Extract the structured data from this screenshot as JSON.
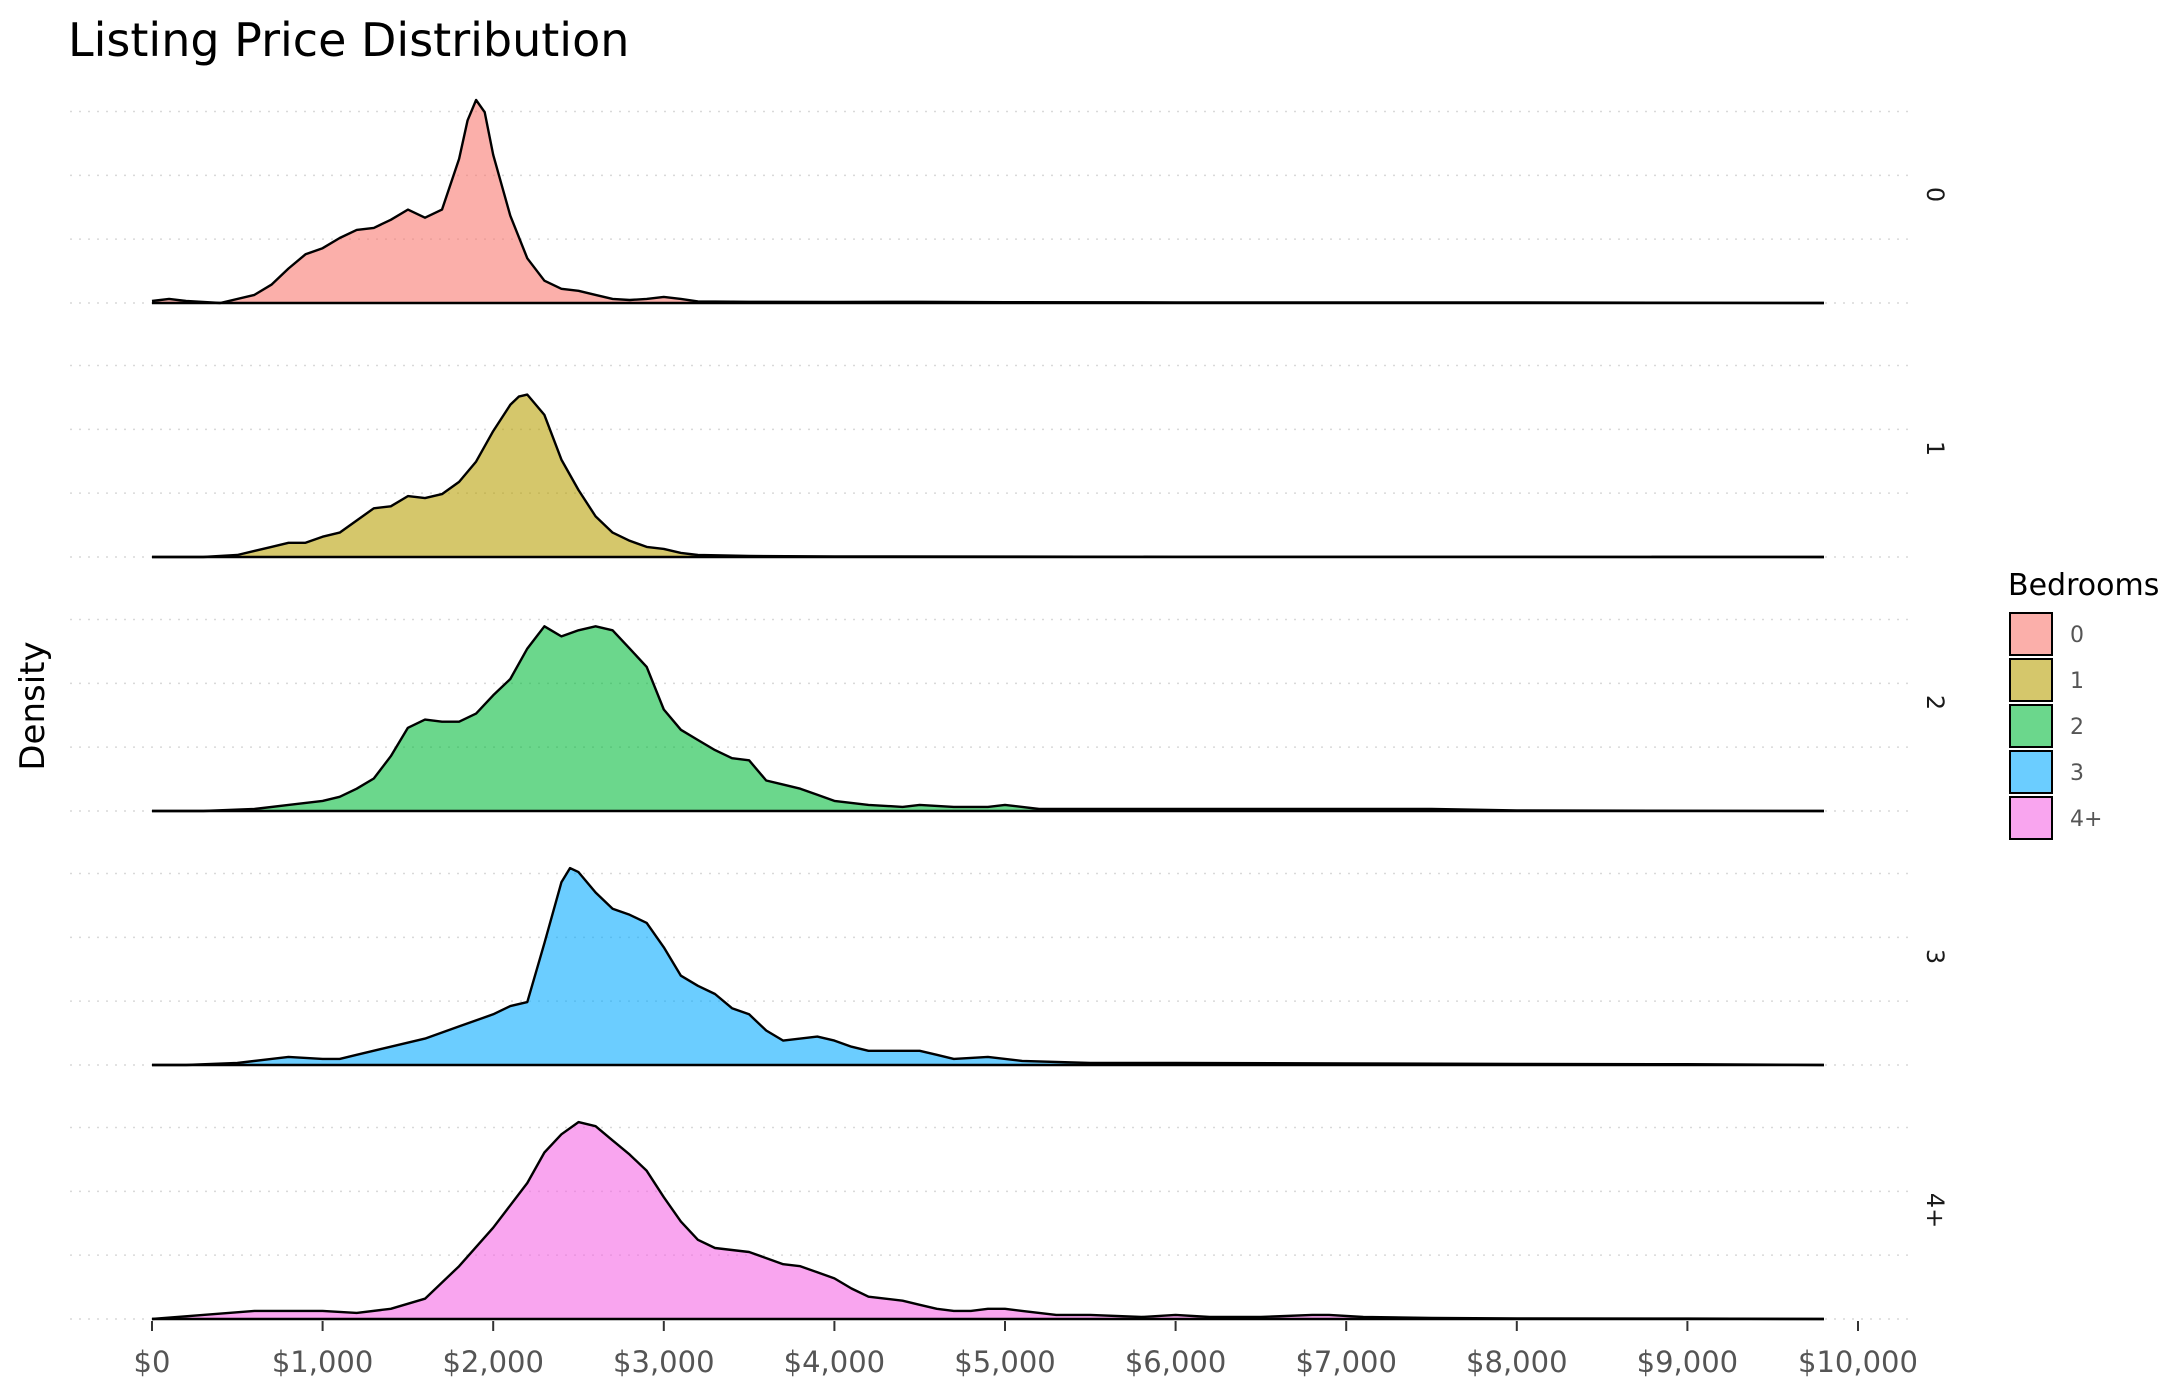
{
  "chart_data": {
    "type": "area",
    "title": "Listing Price Distribution",
    "xlabel": "",
    "ylabel": "Density",
    "xlim": [
      0,
      10000
    ],
    "x_ticks": [
      0,
      1000,
      2000,
      3000,
      4000,
      5000,
      6000,
      7000,
      8000,
      9000,
      10000
    ],
    "x_tick_labels": [
      "$0",
      "$1,000",
      "$2,000",
      "$3,000",
      "$4,000",
      "$5,000",
      "$6,000",
      "$7,000",
      "$8,000",
      "$9,000",
      "$10,000"
    ],
    "facet_by": "Bedrooms",
    "grid": true,
    "legend": {
      "title": "Bedrooms",
      "position": "right"
    },
    "series": [
      {
        "name": "0",
        "color": "#F8766D",
        "points": [
          [
            0,
            0.01
          ],
          [
            100,
            0.02
          ],
          [
            200,
            0.01
          ],
          [
            400,
            0.0
          ],
          [
            600,
            0.04
          ],
          [
            700,
            0.09
          ],
          [
            800,
            0.17
          ],
          [
            900,
            0.24
          ],
          [
            1000,
            0.27
          ],
          [
            1100,
            0.32
          ],
          [
            1200,
            0.36
          ],
          [
            1300,
            0.37
          ],
          [
            1400,
            0.41
          ],
          [
            1500,
            0.46
          ],
          [
            1600,
            0.42
          ],
          [
            1700,
            0.46
          ],
          [
            1800,
            0.71
          ],
          [
            1850,
            0.9
          ],
          [
            1900,
            1.0
          ],
          [
            1950,
            0.94
          ],
          [
            2000,
            0.73
          ],
          [
            2100,
            0.43
          ],
          [
            2200,
            0.22
          ],
          [
            2300,
            0.11
          ],
          [
            2400,
            0.07
          ],
          [
            2500,
            0.06
          ],
          [
            2600,
            0.04
          ],
          [
            2700,
            0.02
          ],
          [
            2800,
            0.015
          ],
          [
            2900,
            0.02
          ],
          [
            3000,
            0.03
          ],
          [
            3100,
            0.02
          ],
          [
            3200,
            0.008
          ],
          [
            3500,
            0.006
          ],
          [
            4000,
            0.005
          ],
          [
            4500,
            0.006
          ],
          [
            5000,
            0.004
          ],
          [
            6000,
            0.003
          ],
          [
            7000,
            0.003
          ],
          [
            8000,
            0.003
          ],
          [
            9800,
            0.0
          ]
        ]
      },
      {
        "name": "1",
        "color": "#B79F00",
        "points": [
          [
            0,
            0.0
          ],
          [
            300,
            0.0
          ],
          [
            500,
            0.01
          ],
          [
            600,
            0.03
          ],
          [
            700,
            0.05
          ],
          [
            800,
            0.07
          ],
          [
            900,
            0.07
          ],
          [
            1000,
            0.1
          ],
          [
            1100,
            0.12
          ],
          [
            1200,
            0.18
          ],
          [
            1300,
            0.24
          ],
          [
            1400,
            0.25
          ],
          [
            1500,
            0.3
          ],
          [
            1600,
            0.29
          ],
          [
            1700,
            0.31
          ],
          [
            1800,
            0.37
          ],
          [
            1900,
            0.47
          ],
          [
            2000,
            0.62
          ],
          [
            2100,
            0.75
          ],
          [
            2150,
            0.79
          ],
          [
            2200,
            0.8
          ],
          [
            2300,
            0.7
          ],
          [
            2400,
            0.48
          ],
          [
            2500,
            0.33
          ],
          [
            2600,
            0.2
          ],
          [
            2700,
            0.12
          ],
          [
            2800,
            0.08
          ],
          [
            2900,
            0.05
          ],
          [
            3000,
            0.04
          ],
          [
            3100,
            0.02
          ],
          [
            3200,
            0.01
          ],
          [
            3500,
            0.005
          ],
          [
            4000,
            0.003
          ],
          [
            5000,
            0.002
          ],
          [
            6000,
            0.001
          ],
          [
            7000,
            0.001
          ],
          [
            8000,
            0.001
          ],
          [
            9800,
            0.0
          ]
        ]
      },
      {
        "name": "2",
        "color": "#00BA38",
        "points": [
          [
            0,
            0.0
          ],
          [
            300,
            0.0
          ],
          [
            600,
            0.01
          ],
          [
            800,
            0.03
          ],
          [
            1000,
            0.05
          ],
          [
            1100,
            0.07
          ],
          [
            1200,
            0.11
          ],
          [
            1300,
            0.16
          ],
          [
            1400,
            0.27
          ],
          [
            1500,
            0.41
          ],
          [
            1600,
            0.45
          ],
          [
            1700,
            0.44
          ],
          [
            1800,
            0.44
          ],
          [
            1900,
            0.48
          ],
          [
            2000,
            0.57
          ],
          [
            2100,
            0.65
          ],
          [
            2200,
            0.8
          ],
          [
            2300,
            0.91
          ],
          [
            2400,
            0.86
          ],
          [
            2500,
            0.89
          ],
          [
            2600,
            0.91
          ],
          [
            2700,
            0.89
          ],
          [
            2800,
            0.8
          ],
          [
            2900,
            0.71
          ],
          [
            3000,
            0.5
          ],
          [
            3100,
            0.4
          ],
          [
            3200,
            0.35
          ],
          [
            3300,
            0.3
          ],
          [
            3400,
            0.26
          ],
          [
            3500,
            0.25
          ],
          [
            3600,
            0.15
          ],
          [
            3700,
            0.13
          ],
          [
            3800,
            0.11
          ],
          [
            3900,
            0.08
          ],
          [
            4000,
            0.05
          ],
          [
            4200,
            0.03
          ],
          [
            4400,
            0.02
          ],
          [
            4500,
            0.03
          ],
          [
            4700,
            0.02
          ],
          [
            4900,
            0.02
          ],
          [
            5000,
            0.03
          ],
          [
            5200,
            0.01
          ],
          [
            5500,
            0.01
          ],
          [
            6000,
            0.01
          ],
          [
            7000,
            0.01
          ],
          [
            7500,
            0.01
          ],
          [
            8000,
            0.003
          ],
          [
            9800,
            0.0
          ]
        ]
      },
      {
        "name": "3",
        "color": "#00A9FF",
        "points": [
          [
            0,
            0.0
          ],
          [
            200,
            0.0
          ],
          [
            500,
            0.01
          ],
          [
            700,
            0.03
          ],
          [
            800,
            0.04
          ],
          [
            1000,
            0.03
          ],
          [
            1100,
            0.03
          ],
          [
            1200,
            0.05
          ],
          [
            1400,
            0.09
          ],
          [
            1600,
            0.13
          ],
          [
            1800,
            0.19
          ],
          [
            2000,
            0.25
          ],
          [
            2100,
            0.29
          ],
          [
            2200,
            0.31
          ],
          [
            2300,
            0.6
          ],
          [
            2400,
            0.9
          ],
          [
            2450,
            0.97
          ],
          [
            2500,
            0.95
          ],
          [
            2600,
            0.85
          ],
          [
            2700,
            0.77
          ],
          [
            2800,
            0.74
          ],
          [
            2900,
            0.7
          ],
          [
            3000,
            0.58
          ],
          [
            3100,
            0.44
          ],
          [
            3200,
            0.39
          ],
          [
            3300,
            0.35
          ],
          [
            3400,
            0.28
          ],
          [
            3500,
            0.25
          ],
          [
            3600,
            0.17
          ],
          [
            3700,
            0.12
          ],
          [
            3800,
            0.13
          ],
          [
            3900,
            0.14
          ],
          [
            4000,
            0.12
          ],
          [
            4100,
            0.09
          ],
          [
            4200,
            0.07
          ],
          [
            4400,
            0.07
          ],
          [
            4500,
            0.07
          ],
          [
            4600,
            0.05
          ],
          [
            4700,
            0.03
          ],
          [
            4900,
            0.04
          ],
          [
            5100,
            0.02
          ],
          [
            5500,
            0.01
          ],
          [
            6000,
            0.01
          ],
          [
            7000,
            0.008
          ],
          [
            8000,
            0.005
          ],
          [
            9000,
            0.004
          ],
          [
            9800,
            0.0
          ]
        ]
      },
      {
        "name": "4+",
        "color": "#F564E3",
        "points": [
          [
            0,
            0.0
          ],
          [
            300,
            0.02
          ],
          [
            600,
            0.04
          ],
          [
            1000,
            0.04
          ],
          [
            1200,
            0.03
          ],
          [
            1400,
            0.05
          ],
          [
            1600,
            0.1
          ],
          [
            1800,
            0.26
          ],
          [
            2000,
            0.45
          ],
          [
            2200,
            0.67
          ],
          [
            2300,
            0.82
          ],
          [
            2400,
            0.91
          ],
          [
            2500,
            0.97
          ],
          [
            2600,
            0.95
          ],
          [
            2700,
            0.88
          ],
          [
            2800,
            0.81
          ],
          [
            2900,
            0.73
          ],
          [
            3000,
            0.6
          ],
          [
            3100,
            0.48
          ],
          [
            3200,
            0.39
          ],
          [
            3300,
            0.35
          ],
          [
            3400,
            0.34
          ],
          [
            3500,
            0.33
          ],
          [
            3600,
            0.3
          ],
          [
            3700,
            0.27
          ],
          [
            3800,
            0.26
          ],
          [
            3900,
            0.23
          ],
          [
            4000,
            0.2
          ],
          [
            4100,
            0.15
          ],
          [
            4200,
            0.11
          ],
          [
            4300,
            0.1
          ],
          [
            4400,
            0.09
          ],
          [
            4500,
            0.07
          ],
          [
            4600,
            0.05
          ],
          [
            4700,
            0.04
          ],
          [
            4800,
            0.04
          ],
          [
            4900,
            0.05
          ],
          [
            5000,
            0.05
          ],
          [
            5100,
            0.04
          ],
          [
            5300,
            0.02
          ],
          [
            5500,
            0.02
          ],
          [
            5800,
            0.01
          ],
          [
            6000,
            0.02
          ],
          [
            6200,
            0.01
          ],
          [
            6500,
            0.01
          ],
          [
            6800,
            0.02
          ],
          [
            6900,
            0.02
          ],
          [
            7100,
            0.01
          ],
          [
            7500,
            0.005
          ],
          [
            8000,
            0.003
          ],
          [
            9000,
            0.002
          ],
          [
            9800,
            0.0
          ]
        ]
      }
    ]
  }
}
